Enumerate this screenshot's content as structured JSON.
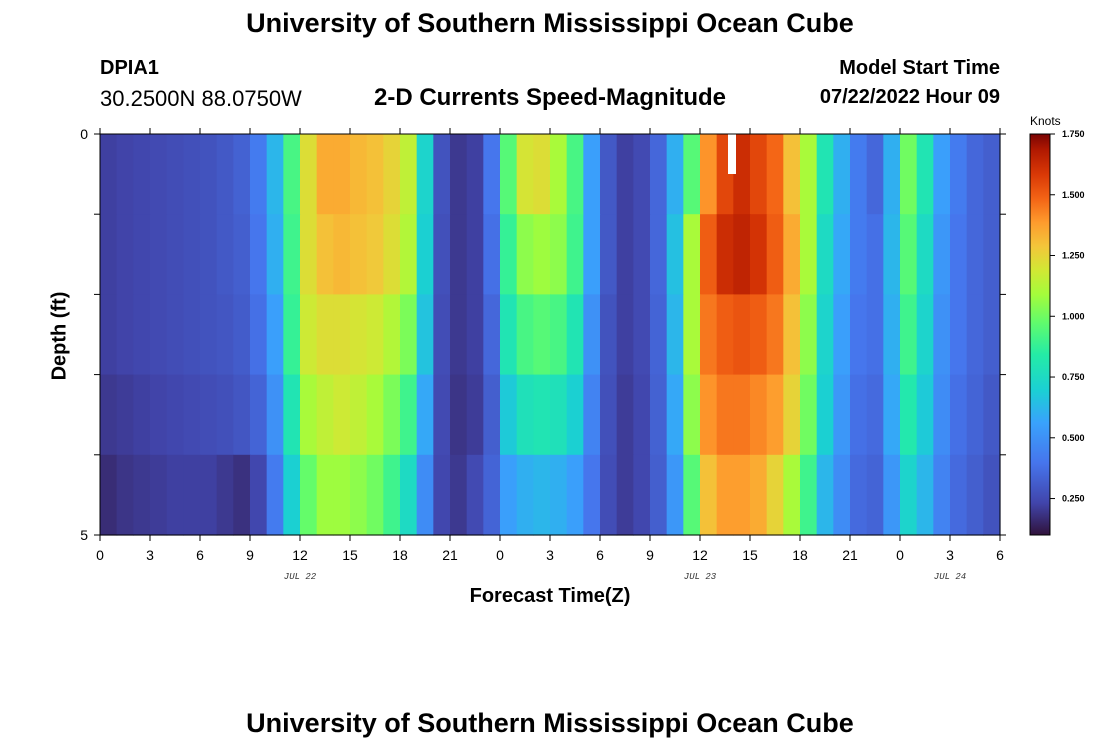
{
  "header": {
    "title": "University of Southern Mississippi Ocean Cube",
    "station_id": "DPIA1",
    "coordinates": "30.2500N  88.0750W",
    "plot_title": "2-D Currents Speed-Magnitude",
    "model_start_label": "Model Start Time",
    "model_start_time": "07/22/2022 Hour 09"
  },
  "footer": {
    "title": "University of Southern Mississippi Ocean Cube"
  },
  "chart_data": {
    "type": "heatmap",
    "title": "2-D Currents Speed-Magnitude",
    "xlabel": "Forecast Time(Z)",
    "ylabel": "Depth (ft)",
    "colorbar_label": "Knots",
    "colorbar_range": [
      0.1,
      1.75
    ],
    "colorbar_ticks": [
      "0.250",
      "0.500",
      "0.750",
      "1.000",
      "1.250",
      "1.500",
      "1.750"
    ],
    "colorbar_tick_values": [
      0.25,
      0.5,
      0.75,
      1.0,
      1.25,
      1.5,
      1.75
    ],
    "x_tick_labels": [
      "0",
      "3",
      "6",
      "9",
      "12",
      "15",
      "18",
      "21",
      "0",
      "3",
      "6",
      "9",
      "12",
      "15",
      "18",
      "21",
      "0",
      "3",
      "6"
    ],
    "date_labels": [
      {
        "label": "JUL 22",
        "hour": 12
      },
      {
        "label": "JUL 23",
        "hour": 36
      },
      {
        "label": "JUL 24",
        "hour": 51
      }
    ],
    "y_tick_labels": [
      "0",
      "5"
    ],
    "xlim_hours": [
      0,
      54
    ],
    "depth_layers": 5,
    "hours": [
      0,
      1,
      2,
      3,
      4,
      5,
      6,
      7,
      8,
      9,
      10,
      11,
      12,
      13,
      14,
      15,
      16,
      17,
      18,
      19,
      20,
      21,
      22,
      23,
      24,
      25,
      26,
      27,
      28,
      29,
      30,
      31,
      32,
      33,
      34,
      35,
      36,
      37,
      38,
      39,
      40,
      41,
      42,
      43,
      44,
      45,
      46,
      47,
      48,
      49,
      50,
      51,
      52,
      53
    ],
    "speed_by_layer": [
      [
        0.22,
        0.23,
        0.24,
        0.25,
        0.26,
        0.27,
        0.28,
        0.3,
        0.33,
        0.42,
        0.62,
        0.92,
        1.22,
        1.35,
        1.35,
        1.32,
        1.3,
        1.25,
        1.15,
        0.72,
        0.28,
        0.2,
        0.22,
        0.4,
        0.95,
        1.2,
        1.22,
        1.1,
        0.92,
        0.55,
        0.3,
        0.22,
        0.25,
        0.35,
        0.6,
        0.95,
        1.4,
        1.55,
        1.62,
        1.55,
        1.48,
        1.3,
        1.1,
        0.8,
        0.6,
        0.42,
        0.35,
        0.6,
        1.0,
        0.8,
        0.55,
        0.42,
        0.35,
        0.32
      ],
      [
        0.22,
        0.23,
        0.24,
        0.25,
        0.26,
        0.27,
        0.28,
        0.3,
        0.32,
        0.4,
        0.6,
        0.9,
        1.22,
        1.3,
        1.32,
        1.3,
        1.28,
        1.22,
        1.12,
        0.7,
        0.27,
        0.2,
        0.22,
        0.38,
        0.88,
        1.05,
        1.08,
        1.05,
        0.9,
        0.55,
        0.3,
        0.22,
        0.25,
        0.35,
        0.65,
        1.1,
        1.5,
        1.62,
        1.65,
        1.6,
        1.5,
        1.35,
        1.1,
        0.75,
        0.58,
        0.42,
        0.38,
        0.62,
        0.95,
        0.75,
        0.52,
        0.4,
        0.35,
        0.32
      ],
      [
        0.22,
        0.23,
        0.24,
        0.25,
        0.26,
        0.27,
        0.28,
        0.29,
        0.31,
        0.38,
        0.55,
        0.88,
        1.18,
        1.22,
        1.22,
        1.2,
        1.18,
        1.12,
        1.02,
        0.66,
        0.26,
        0.2,
        0.22,
        0.35,
        0.8,
        0.92,
        0.95,
        0.92,
        0.8,
        0.5,
        0.28,
        0.22,
        0.25,
        0.34,
        0.62,
        1.1,
        1.45,
        1.5,
        1.52,
        1.5,
        1.45,
        1.3,
        1.05,
        0.72,
        0.55,
        0.4,
        0.38,
        0.6,
        0.9,
        0.72,
        0.5,
        0.4,
        0.35,
        0.32
      ],
      [
        0.2,
        0.21,
        0.22,
        0.23,
        0.24,
        0.25,
        0.26,
        0.27,
        0.29,
        0.34,
        0.5,
        0.8,
        1.1,
        1.15,
        1.18,
        1.15,
        1.1,
        1.02,
        0.9,
        0.58,
        0.25,
        0.19,
        0.21,
        0.32,
        0.68,
        0.78,
        0.8,
        0.78,
        0.7,
        0.45,
        0.27,
        0.21,
        0.24,
        0.33,
        0.58,
        1.05,
        1.4,
        1.45,
        1.45,
        1.42,
        1.38,
        1.25,
        1.0,
        0.7,
        0.52,
        0.38,
        0.36,
        0.58,
        0.82,
        0.68,
        0.48,
        0.38,
        0.34,
        0.3
      ],
      [
        0.17,
        0.19,
        0.2,
        0.21,
        0.22,
        0.22,
        0.22,
        0.2,
        0.18,
        0.24,
        0.42,
        0.7,
        0.98,
        1.08,
        1.08,
        1.05,
        1.0,
        0.9,
        0.75,
        0.48,
        0.24,
        0.2,
        0.25,
        0.34,
        0.55,
        0.6,
        0.62,
        0.6,
        0.55,
        0.4,
        0.26,
        0.21,
        0.24,
        0.32,
        0.52,
        0.95,
        1.3,
        1.38,
        1.38,
        1.35,
        1.25,
        1.1,
        0.9,
        0.62,
        0.48,
        0.36,
        0.34,
        0.52,
        0.72,
        0.62,
        0.45,
        0.36,
        0.32,
        0.28
      ]
    ]
  }
}
